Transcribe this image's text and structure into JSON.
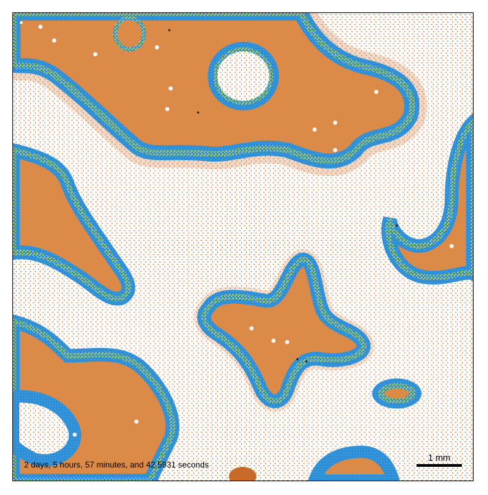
{
  "figure": {
    "time_label": "2 days, 5 hours, 57 minutes, and 42.5931 seconds",
    "scale_bar_label": "1 mm"
  },
  "colors": {
    "background": "#ffffff",
    "tissue": "#dc8a48",
    "dispersed_cells": "#c86a28",
    "proliferating_rim": "#2e8fd6",
    "hypoxic_cells": "#d9e030",
    "necrotic_dots": "#1a1a1a",
    "vessels": "#ffffff"
  }
}
